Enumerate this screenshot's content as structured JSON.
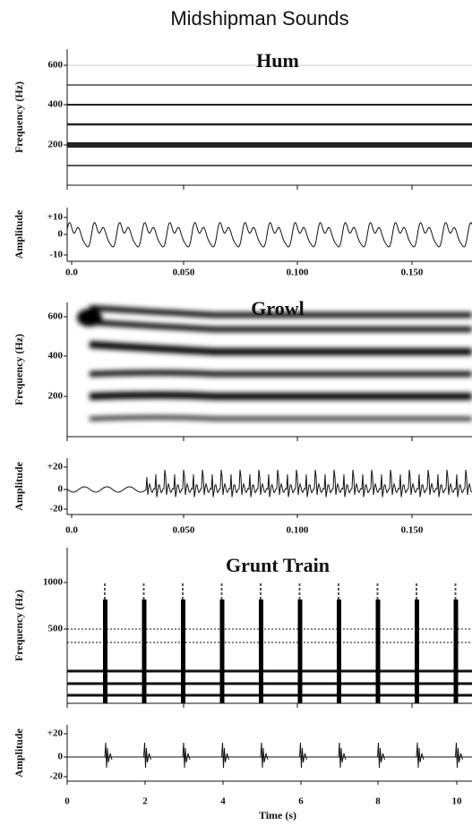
{
  "title": "Midshipman Sounds",
  "panels": [
    {
      "title": "Hum",
      "y_label": "Frequency (Hz)",
      "y_ticks": [
        "600",
        "400",
        "200"
      ]
    },
    {
      "y_label": "Amplitude",
      "y_ticks": [
        "+10",
        "0",
        "-10"
      ],
      "x_ticks": [
        "0.0",
        "0.050",
        "0.100",
        "0.150"
      ]
    },
    {
      "title": "Growl",
      "y_label": "Frequency (Hz)",
      "y_ticks": [
        "600",
        "400",
        "200"
      ]
    },
    {
      "y_label": "Amplitude",
      "y_ticks": [
        "+20",
        "0",
        "-20"
      ],
      "x_ticks": [
        "0.0",
        "0.050",
        "0.100",
        "0.150"
      ]
    },
    {
      "title": "Grunt Train",
      "y_label": "Frequency (Hz)",
      "y_ticks": [
        "1000",
        "500"
      ]
    },
    {
      "y_label": "Amplitude",
      "y_ticks": [
        "+20",
        "0",
        "-20"
      ],
      "x_ticks": [
        "0",
        "2",
        "4",
        "6",
        "8",
        "10"
      ]
    }
  ],
  "x_label": "Time (s)"
}
